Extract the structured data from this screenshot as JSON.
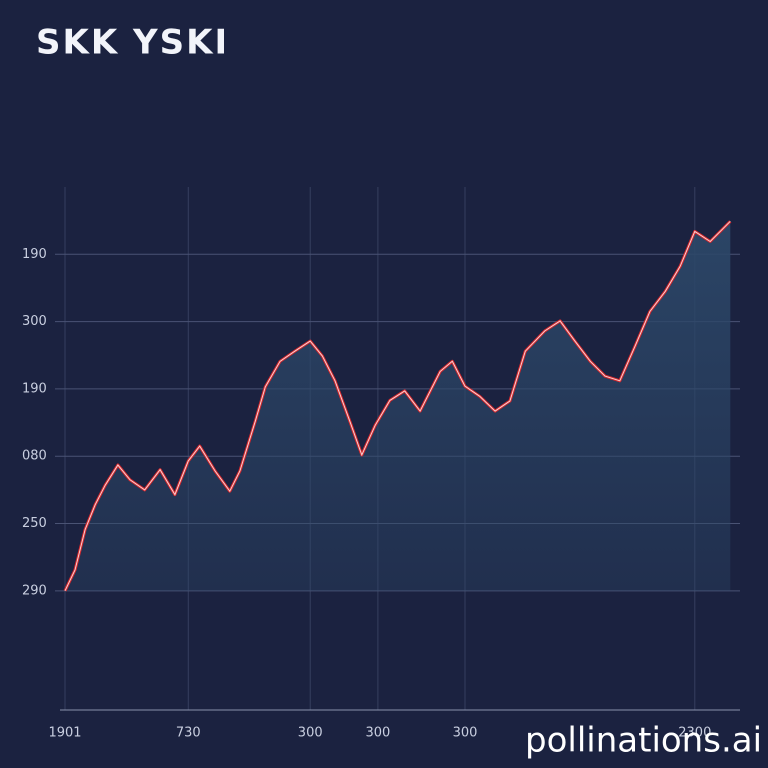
{
  "chart_data": {
    "type": "area",
    "title": "SKK YSKI",
    "watermark": "pollinations.ai",
    "grid": true,
    "line_color": "#d8282d",
    "fill_color": "#2c4768",
    "grid_color": "#4a5374",
    "xlim": [
      0,
      100
    ],
    "ylim": [
      -1.8,
      6
    ],
    "xticks": [
      {
        "value": 0,
        "label": "1901"
      },
      {
        "value": 18.4,
        "label": "730"
      },
      {
        "value": 36.6,
        "label": "300"
      },
      {
        "value": 46.7,
        "label": "300"
      },
      {
        "value": 59.7,
        "label": "300"
      },
      {
        "value": 94,
        "label": "2300"
      }
    ],
    "yticks": [
      {
        "value": 0,
        "label": "290"
      },
      {
        "value": 1,
        "label": "250"
      },
      {
        "value": 2,
        "label": "080"
      },
      {
        "value": 3,
        "label": "190"
      },
      {
        "value": 4,
        "label": "300"
      },
      {
        "value": 5,
        "label": "190"
      }
    ],
    "series": [
      {
        "x": [
          0,
          1.5,
          3,
          4.5,
          6,
          7.9,
          9.7,
          11.9,
          14.2,
          16.4,
          18.4,
          20.1,
          22.4,
          24.6,
          26.1,
          28.4,
          29.9,
          32.1,
          34.3,
          36.6,
          38.4,
          40.3,
          42.5,
          44.3,
          46.3,
          48.5,
          50.7,
          53,
          56,
          57.8,
          59.7,
          61.9,
          64.2,
          66.4,
          68.7,
          71.6,
          73.9,
          76.1,
          78.4,
          80.6,
          82.8,
          85.1,
          87.3,
          89.6,
          91.8,
          94,
          96.3,
          99.3
        ],
        "values": [
          0,
          0.31,
          0.91,
          1.28,
          1.57,
          1.87,
          1.65,
          1.5,
          1.8,
          1.43,
          1.93,
          2.15,
          1.78,
          1.48,
          1.78,
          2.52,
          3.03,
          3.41,
          3.56,
          3.71,
          3.49,
          3.12,
          2.52,
          2.02,
          2.46,
          2.83,
          2.97,
          2.67,
          3.26,
          3.41,
          3.04,
          2.89,
          2.67,
          2.82,
          3.56,
          3.86,
          4.01,
          3.71,
          3.41,
          3.19,
          3.12,
          3.64,
          4.15,
          4.45,
          4.82,
          5.34,
          5.19,
          5.49
        ]
      }
    ]
  }
}
